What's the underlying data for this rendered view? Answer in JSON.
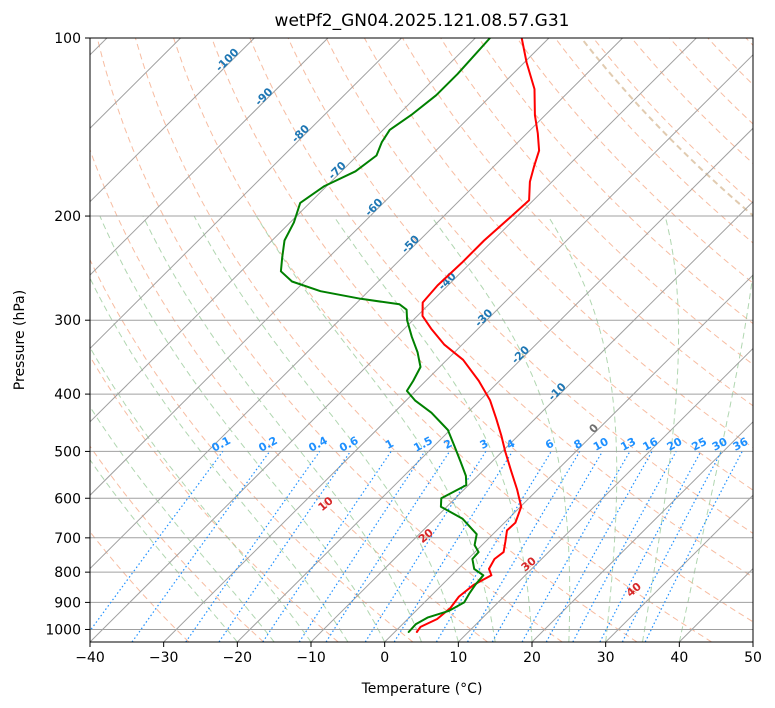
{
  "chart_data": {
    "type": "line",
    "subtype": "skew-t-log-p",
    "title": "wetPf2_GN04.2025.121.08.57.G31",
    "xlabel": "Temperature (°C)",
    "ylabel": "Pressure (hPa)",
    "xlim": [
      -40,
      50
    ],
    "ylim": [
      1050,
      100
    ],
    "y_scale": "log",
    "x_ticks": [
      -40,
      -30,
      -20,
      -10,
      0,
      10,
      20,
      30,
      40,
      50
    ],
    "x_tick_labels": [
      "−40",
      "−30",
      "−20",
      "−10",
      "0",
      "10",
      "20",
      "30",
      "40",
      "50"
    ],
    "y_ticks": [
      100,
      200,
      300,
      400,
      500,
      600,
      700,
      800,
      900,
      1000
    ],
    "y_tick_labels": [
      "100",
      "200",
      "300",
      "400",
      "500",
      "600",
      "700",
      "800",
      "900",
      "1000"
    ],
    "grid": true,
    "colors": {
      "temperature": "#ff0000",
      "dewpoint": "#008000",
      "isotherm": "#a0a0a0",
      "isobar": "#a0a0a0",
      "dry_adiabat": "#f4a582",
      "moist_adiabat": "#9ccc9c",
      "mixing_ratio": "#1e90ff",
      "isotherm_label": "#1f77b4",
      "dry_adiabat_label": "#d62728",
      "extra_curve": "#c8a070"
    },
    "series": [
      {
        "role": "temperature",
        "color": "#ff0000",
        "points": [
          {
            "p": 1010,
            "t": 3.0
          },
          {
            "p": 990,
            "t": 2.8
          },
          {
            "p": 960,
            "t": 4.0
          },
          {
            "p": 920,
            "t": 4.3
          },
          {
            "p": 880,
            "t": 3.9
          },
          {
            "p": 840,
            "t": 4.3
          },
          {
            "p": 810,
            "t": 5.4
          },
          {
            "p": 790,
            "t": 4.2
          },
          {
            "p": 760,
            "t": 3.6
          },
          {
            "p": 740,
            "t": 3.9
          },
          {
            "p": 710,
            "t": 2.7
          },
          {
            "p": 680,
            "t": 1.4
          },
          {
            "p": 660,
            "t": 1.5
          },
          {
            "p": 620,
            "t": 0.1
          },
          {
            "p": 580,
            "t": -2.8
          },
          {
            "p": 540,
            "t": -6.1
          },
          {
            "p": 500,
            "t": -9.6
          },
          {
            "p": 470,
            "t": -12.3
          },
          {
            "p": 440,
            "t": -15.3
          },
          {
            "p": 410,
            "t": -18.6
          },
          {
            "p": 380,
            "t": -22.8
          },
          {
            "p": 350,
            "t": -27.8
          },
          {
            "p": 330,
            "t": -32.4
          },
          {
            "p": 310,
            "t": -36.4
          },
          {
            "p": 295,
            "t": -39.3
          },
          {
            "p": 280,
            "t": -41.1
          },
          {
            "p": 262,
            "t": -41.4
          },
          {
            "p": 240,
            "t": -41.2
          },
          {
            "p": 220,
            "t": -41.2
          },
          {
            "p": 200,
            "t": -40.8
          },
          {
            "p": 188,
            "t": -40.6
          },
          {
            "p": 175,
            "t": -43.0
          },
          {
            "p": 165,
            "t": -44.5
          },
          {
            "p": 155,
            "t": -46.0
          },
          {
            "p": 145,
            "t": -48.5
          },
          {
            "p": 135,
            "t": -51.4
          },
          {
            "p": 122,
            "t": -55.0
          },
          {
            "p": 110,
            "t": -59.7
          },
          {
            "p": 100,
            "t": -63.7
          }
        ]
      },
      {
        "role": "dewpoint",
        "color": "#008000",
        "points": [
          {
            "p": 1010,
            "t": 1.9
          },
          {
            "p": 980,
            "t": 1.8
          },
          {
            "p": 955,
            "t": 2.5
          },
          {
            "p": 930,
            "t": 4.5
          },
          {
            "p": 900,
            "t": 5.4
          },
          {
            "p": 870,
            "t": 4.9
          },
          {
            "p": 840,
            "t": 4.5
          },
          {
            "p": 810,
            "t": 4.3
          },
          {
            "p": 790,
            "t": 2.2
          },
          {
            "p": 760,
            "t": 0.6
          },
          {
            "p": 740,
            "t": 0.5
          },
          {
            "p": 720,
            "t": -1.0
          },
          {
            "p": 690,
            "t": -2.2
          },
          {
            "p": 650,
            "t": -6.2
          },
          {
            "p": 620,
            "t": -10.8
          },
          {
            "p": 600,
            "t": -11.9
          },
          {
            "p": 570,
            "t": -10.3
          },
          {
            "p": 550,
            "t": -11.6
          },
          {
            "p": 520,
            "t": -14.3
          },
          {
            "p": 490,
            "t": -17.2
          },
          {
            "p": 460,
            "t": -20.3
          },
          {
            "p": 430,
            "t": -24.9
          },
          {
            "p": 410,
            "t": -28.8
          },
          {
            "p": 395,
            "t": -31.2
          },
          {
            "p": 380,
            "t": -31.7
          },
          {
            "p": 360,
            "t": -32.6
          },
          {
            "p": 340,
            "t": -35.0
          },
          {
            "p": 320,
            "t": -37.9
          },
          {
            "p": 300,
            "t": -40.8
          },
          {
            "p": 288,
            "t": -42.3
          },
          {
            "p": 282,
            "t": -44.0
          },
          {
            "p": 276,
            "t": -50.0
          },
          {
            "p": 268,
            "t": -56.5
          },
          {
            "p": 258,
            "t": -61.7
          },
          {
            "p": 248,
            "t": -64.6
          },
          {
            "p": 235,
            "t": -66.3
          },
          {
            "p": 220,
            "t": -68.3
          },
          {
            "p": 205,
            "t": -69.5
          },
          {
            "p": 190,
            "t": -71.3
          },
          {
            "p": 178,
            "t": -70.3
          },
          {
            "p": 168,
            "t": -68.1
          },
          {
            "p": 158,
            "t": -67.4
          },
          {
            "p": 150,
            "t": -68.5
          },
          {
            "p": 143,
            "t": -69.1
          },
          {
            "p": 135,
            "t": -68.2
          },
          {
            "p": 125,
            "t": -67.5
          },
          {
            "p": 115,
            "t": -67.5
          },
          {
            "p": 100,
            "t": -68.0
          }
        ]
      }
    ],
    "isotherm_labels": [
      "-100",
      "-90",
      "-80",
      "-70",
      "-60",
      "-50",
      "-40",
      "-30",
      "-20",
      "-10",
      "0"
    ],
    "isotherm_label_values": [
      -100,
      -90,
      -80,
      -70,
      -60,
      -50,
      -40,
      -30,
      -20,
      -10,
      0
    ],
    "dry_adiabat_labels": [
      "10",
      "20",
      "30",
      "40"
    ],
    "dry_adiabat_label_values": [
      10,
      20,
      30,
      40
    ],
    "mixing_ratio_labels": [
      "0.1",
      "0.2",
      "0.4",
      "0.6",
      "1",
      "1.5",
      "2",
      "3",
      "4",
      "6",
      "8",
      "10",
      "13",
      "16",
      "20",
      "25",
      "30",
      "36"
    ],
    "mixing_ratio_values": [
      0.1,
      0.2,
      0.4,
      0.6,
      1,
      1.5,
      2,
      3,
      4,
      6,
      8,
      10,
      13,
      16,
      20,
      25,
      30,
      36
    ]
  }
}
